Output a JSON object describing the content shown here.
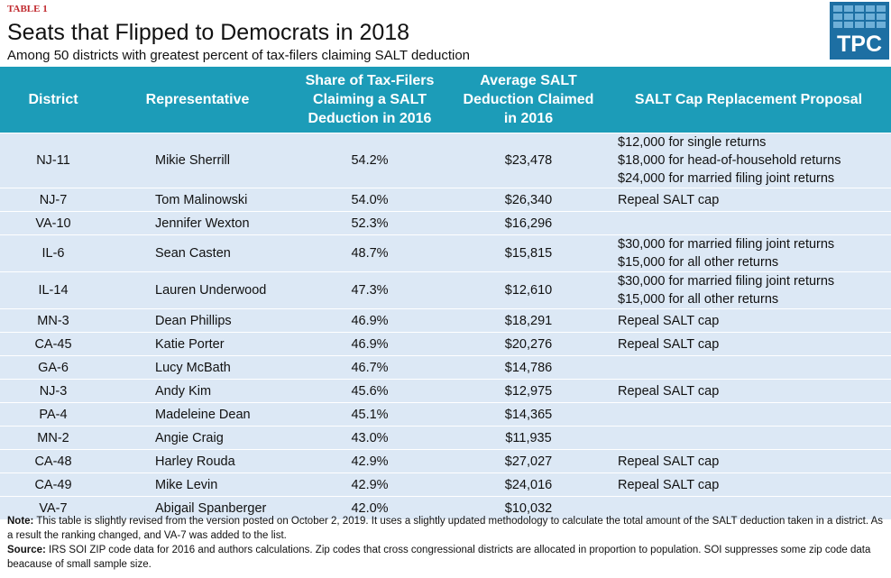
{
  "header": {
    "label": "TABLE 1",
    "title": "Seats that Flipped to Democrats in 2018",
    "subtitle": "Among 50 districts with greatest percent of tax-filers claiming SALT deduction",
    "logo": "TPC"
  },
  "table": {
    "columns": [
      "District",
      "Representative",
      "Share of Tax-Filers Claiming a SALT Deduction in 2016",
      "Average SALT Deduction Claimed in 2016",
      "SALT Cap Replacement Proposal"
    ],
    "rows": [
      [
        "NJ-11",
        "Mikie Sherrill",
        "54.2%",
        "$23,478",
        [
          "$12,000 for single returns",
          "$18,000 for head-of-household returns",
          "$24,000 for married filing joint returns"
        ]
      ],
      [
        "NJ-7",
        "Tom Malinowski",
        "54.0%",
        "$26,340",
        [
          "Repeal SALT cap"
        ]
      ],
      [
        "VA-10",
        "Jennifer Wexton",
        "52.3%",
        "$16,296",
        []
      ],
      [
        "IL-6",
        "Sean Casten",
        "48.7%",
        "$15,815",
        [
          "$30,000 for married filing joint returns",
          "$15,000 for all other returns"
        ]
      ],
      [
        "IL-14",
        "Lauren Underwood",
        "47.3%",
        "$12,610",
        [
          "$30,000 for married filing joint returns",
          "$15,000 for all other returns"
        ]
      ],
      [
        "MN-3",
        "Dean Phillips",
        "46.9%",
        "$18,291",
        [
          "Repeal SALT cap"
        ]
      ],
      [
        "CA-45",
        "Katie Porter",
        "46.9%",
        "$20,276",
        [
          "Repeal SALT cap"
        ]
      ],
      [
        "GA-6",
        "Lucy McBath",
        "46.7%",
        "$14,786",
        []
      ],
      [
        "NJ-3",
        "Andy Kim",
        "45.6%",
        "$12,975",
        [
          "Repeal SALT cap"
        ]
      ],
      [
        "PA-4",
        "Madeleine Dean",
        "45.1%",
        "$14,365",
        []
      ],
      [
        "MN-2",
        "Angie Craig",
        "43.0%",
        "$11,935",
        []
      ],
      [
        "CA-48",
        "Harley Rouda",
        "42.9%",
        "$27,027",
        [
          "Repeal SALT cap"
        ]
      ],
      [
        "CA-49",
        "Mike Levin",
        "42.9%",
        "$24,016",
        [
          "Repeal SALT cap"
        ]
      ],
      [
        "VA-7",
        "Abigail Spanberger",
        "42.0%",
        "$10,032",
        []
      ]
    ]
  },
  "notes": [
    {
      "label": "Note:",
      "text": "This table is slightly revised from the version posted on October 2, 2019. It uses a slightly updated methodology to calculate the total amount of the SALT deduction taken in a district. As a result the ranking changed, and VA-7 was added to the list."
    },
    {
      "label": "Source:",
      "text": "IRS SOI ZIP code data for 2016 and authors calculations. Zip codes that cross congressional districts are allocated in proportion to population. SOI suppresses some zip code data beacause of small sample size."
    }
  ]
}
